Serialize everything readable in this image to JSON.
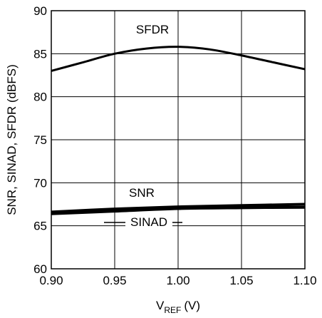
{
  "chart_data": {
    "type": "line",
    "ylabel": "SNR, SINAD, SFDR (dBFS)",
    "xlabel_main": "V",
    "xlabel_sub": "REF",
    "xlabel_unit": "(V)",
    "xlim": [
      0.9,
      1.1
    ],
    "ylim": [
      60,
      90
    ],
    "grid": true,
    "x_ticks": [
      0.9,
      0.95,
      1.0,
      1.05,
      1.1
    ],
    "x_tick_labels": [
      "0.90",
      "0.95",
      "1.00",
      "1.05",
      "1.10"
    ],
    "y_ticks": [
      60,
      65,
      70,
      75,
      80,
      85,
      90
    ],
    "y_tick_labels": [
      "60",
      "65",
      "70",
      "75",
      "80",
      "85",
      "90"
    ],
    "series": [
      {
        "name": "SFDR",
        "x": [
          0.9,
          0.925,
          0.95,
          0.975,
          1.0,
          1.025,
          1.05,
          1.075,
          1.1
        ],
        "y": [
          83.0,
          84.0,
          85.0,
          85.6,
          85.8,
          85.5,
          84.8,
          84.0,
          83.2
        ]
      },
      {
        "name": "SNR",
        "x": [
          0.9,
          0.95,
          1.0,
          1.05,
          1.1
        ],
        "y": [
          66.6,
          66.95,
          67.2,
          67.35,
          67.5
        ]
      },
      {
        "name": "SINAD",
        "x": [
          0.9,
          0.95,
          1.0,
          1.05,
          1.1
        ],
        "y": [
          66.4,
          66.7,
          67.0,
          67.1,
          67.15
        ]
      }
    ]
  }
}
